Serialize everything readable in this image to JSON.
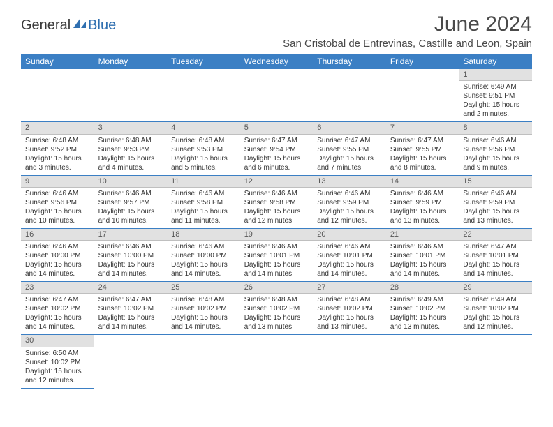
{
  "logo": {
    "part1": "General",
    "part2": "Blue"
  },
  "title": "June 2024",
  "subtitle": "San Cristobal de Entrevinas, Castille and Leon, Spain",
  "colors": {
    "header_bg": "#3b7fc4",
    "header_text": "#ffffff",
    "daynum_bg": "#e1e1e1",
    "cell_border": "#3b7fc4",
    "text": "#333333",
    "logo_blue": "#2f6fb0"
  },
  "weekdays": [
    "Sunday",
    "Monday",
    "Tuesday",
    "Wednesday",
    "Thursday",
    "Friday",
    "Saturday"
  ],
  "weeks": [
    [
      null,
      null,
      null,
      null,
      null,
      null,
      {
        "n": "1",
        "sr": "Sunrise: 6:49 AM",
        "ss": "Sunset: 9:51 PM",
        "d1": "Daylight: 15 hours",
        "d2": "and 2 minutes."
      }
    ],
    [
      {
        "n": "2",
        "sr": "Sunrise: 6:48 AM",
        "ss": "Sunset: 9:52 PM",
        "d1": "Daylight: 15 hours",
        "d2": "and 3 minutes."
      },
      {
        "n": "3",
        "sr": "Sunrise: 6:48 AM",
        "ss": "Sunset: 9:53 PM",
        "d1": "Daylight: 15 hours",
        "d2": "and 4 minutes."
      },
      {
        "n": "4",
        "sr": "Sunrise: 6:48 AM",
        "ss": "Sunset: 9:53 PM",
        "d1": "Daylight: 15 hours",
        "d2": "and 5 minutes."
      },
      {
        "n": "5",
        "sr": "Sunrise: 6:47 AM",
        "ss": "Sunset: 9:54 PM",
        "d1": "Daylight: 15 hours",
        "d2": "and 6 minutes."
      },
      {
        "n": "6",
        "sr": "Sunrise: 6:47 AM",
        "ss": "Sunset: 9:55 PM",
        "d1": "Daylight: 15 hours",
        "d2": "and 7 minutes."
      },
      {
        "n": "7",
        "sr": "Sunrise: 6:47 AM",
        "ss": "Sunset: 9:55 PM",
        "d1": "Daylight: 15 hours",
        "d2": "and 8 minutes."
      },
      {
        "n": "8",
        "sr": "Sunrise: 6:46 AM",
        "ss": "Sunset: 9:56 PM",
        "d1": "Daylight: 15 hours",
        "d2": "and 9 minutes."
      }
    ],
    [
      {
        "n": "9",
        "sr": "Sunrise: 6:46 AM",
        "ss": "Sunset: 9:56 PM",
        "d1": "Daylight: 15 hours",
        "d2": "and 10 minutes."
      },
      {
        "n": "10",
        "sr": "Sunrise: 6:46 AM",
        "ss": "Sunset: 9:57 PM",
        "d1": "Daylight: 15 hours",
        "d2": "and 10 minutes."
      },
      {
        "n": "11",
        "sr": "Sunrise: 6:46 AM",
        "ss": "Sunset: 9:58 PM",
        "d1": "Daylight: 15 hours",
        "d2": "and 11 minutes."
      },
      {
        "n": "12",
        "sr": "Sunrise: 6:46 AM",
        "ss": "Sunset: 9:58 PM",
        "d1": "Daylight: 15 hours",
        "d2": "and 12 minutes."
      },
      {
        "n": "13",
        "sr": "Sunrise: 6:46 AM",
        "ss": "Sunset: 9:59 PM",
        "d1": "Daylight: 15 hours",
        "d2": "and 12 minutes."
      },
      {
        "n": "14",
        "sr": "Sunrise: 6:46 AM",
        "ss": "Sunset: 9:59 PM",
        "d1": "Daylight: 15 hours",
        "d2": "and 13 minutes."
      },
      {
        "n": "15",
        "sr": "Sunrise: 6:46 AM",
        "ss": "Sunset: 9:59 PM",
        "d1": "Daylight: 15 hours",
        "d2": "and 13 minutes."
      }
    ],
    [
      {
        "n": "16",
        "sr": "Sunrise: 6:46 AM",
        "ss": "Sunset: 10:00 PM",
        "d1": "Daylight: 15 hours",
        "d2": "and 14 minutes."
      },
      {
        "n": "17",
        "sr": "Sunrise: 6:46 AM",
        "ss": "Sunset: 10:00 PM",
        "d1": "Daylight: 15 hours",
        "d2": "and 14 minutes."
      },
      {
        "n": "18",
        "sr": "Sunrise: 6:46 AM",
        "ss": "Sunset: 10:00 PM",
        "d1": "Daylight: 15 hours",
        "d2": "and 14 minutes."
      },
      {
        "n": "19",
        "sr": "Sunrise: 6:46 AM",
        "ss": "Sunset: 10:01 PM",
        "d1": "Daylight: 15 hours",
        "d2": "and 14 minutes."
      },
      {
        "n": "20",
        "sr": "Sunrise: 6:46 AM",
        "ss": "Sunset: 10:01 PM",
        "d1": "Daylight: 15 hours",
        "d2": "and 14 minutes."
      },
      {
        "n": "21",
        "sr": "Sunrise: 6:46 AM",
        "ss": "Sunset: 10:01 PM",
        "d1": "Daylight: 15 hours",
        "d2": "and 14 minutes."
      },
      {
        "n": "22",
        "sr": "Sunrise: 6:47 AM",
        "ss": "Sunset: 10:01 PM",
        "d1": "Daylight: 15 hours",
        "d2": "and 14 minutes."
      }
    ],
    [
      {
        "n": "23",
        "sr": "Sunrise: 6:47 AM",
        "ss": "Sunset: 10:02 PM",
        "d1": "Daylight: 15 hours",
        "d2": "and 14 minutes."
      },
      {
        "n": "24",
        "sr": "Sunrise: 6:47 AM",
        "ss": "Sunset: 10:02 PM",
        "d1": "Daylight: 15 hours",
        "d2": "and 14 minutes."
      },
      {
        "n": "25",
        "sr": "Sunrise: 6:48 AM",
        "ss": "Sunset: 10:02 PM",
        "d1": "Daylight: 15 hours",
        "d2": "and 14 minutes."
      },
      {
        "n": "26",
        "sr": "Sunrise: 6:48 AM",
        "ss": "Sunset: 10:02 PM",
        "d1": "Daylight: 15 hours",
        "d2": "and 13 minutes."
      },
      {
        "n": "27",
        "sr": "Sunrise: 6:48 AM",
        "ss": "Sunset: 10:02 PM",
        "d1": "Daylight: 15 hours",
        "d2": "and 13 minutes."
      },
      {
        "n": "28",
        "sr": "Sunrise: 6:49 AM",
        "ss": "Sunset: 10:02 PM",
        "d1": "Daylight: 15 hours",
        "d2": "and 13 minutes."
      },
      {
        "n": "29",
        "sr": "Sunrise: 6:49 AM",
        "ss": "Sunset: 10:02 PM",
        "d1": "Daylight: 15 hours",
        "d2": "and 12 minutes."
      }
    ],
    [
      {
        "n": "30",
        "sr": "Sunrise: 6:50 AM",
        "ss": "Sunset: 10:02 PM",
        "d1": "Daylight: 15 hours",
        "d2": "and 12 minutes."
      },
      null,
      null,
      null,
      null,
      null,
      null
    ]
  ]
}
